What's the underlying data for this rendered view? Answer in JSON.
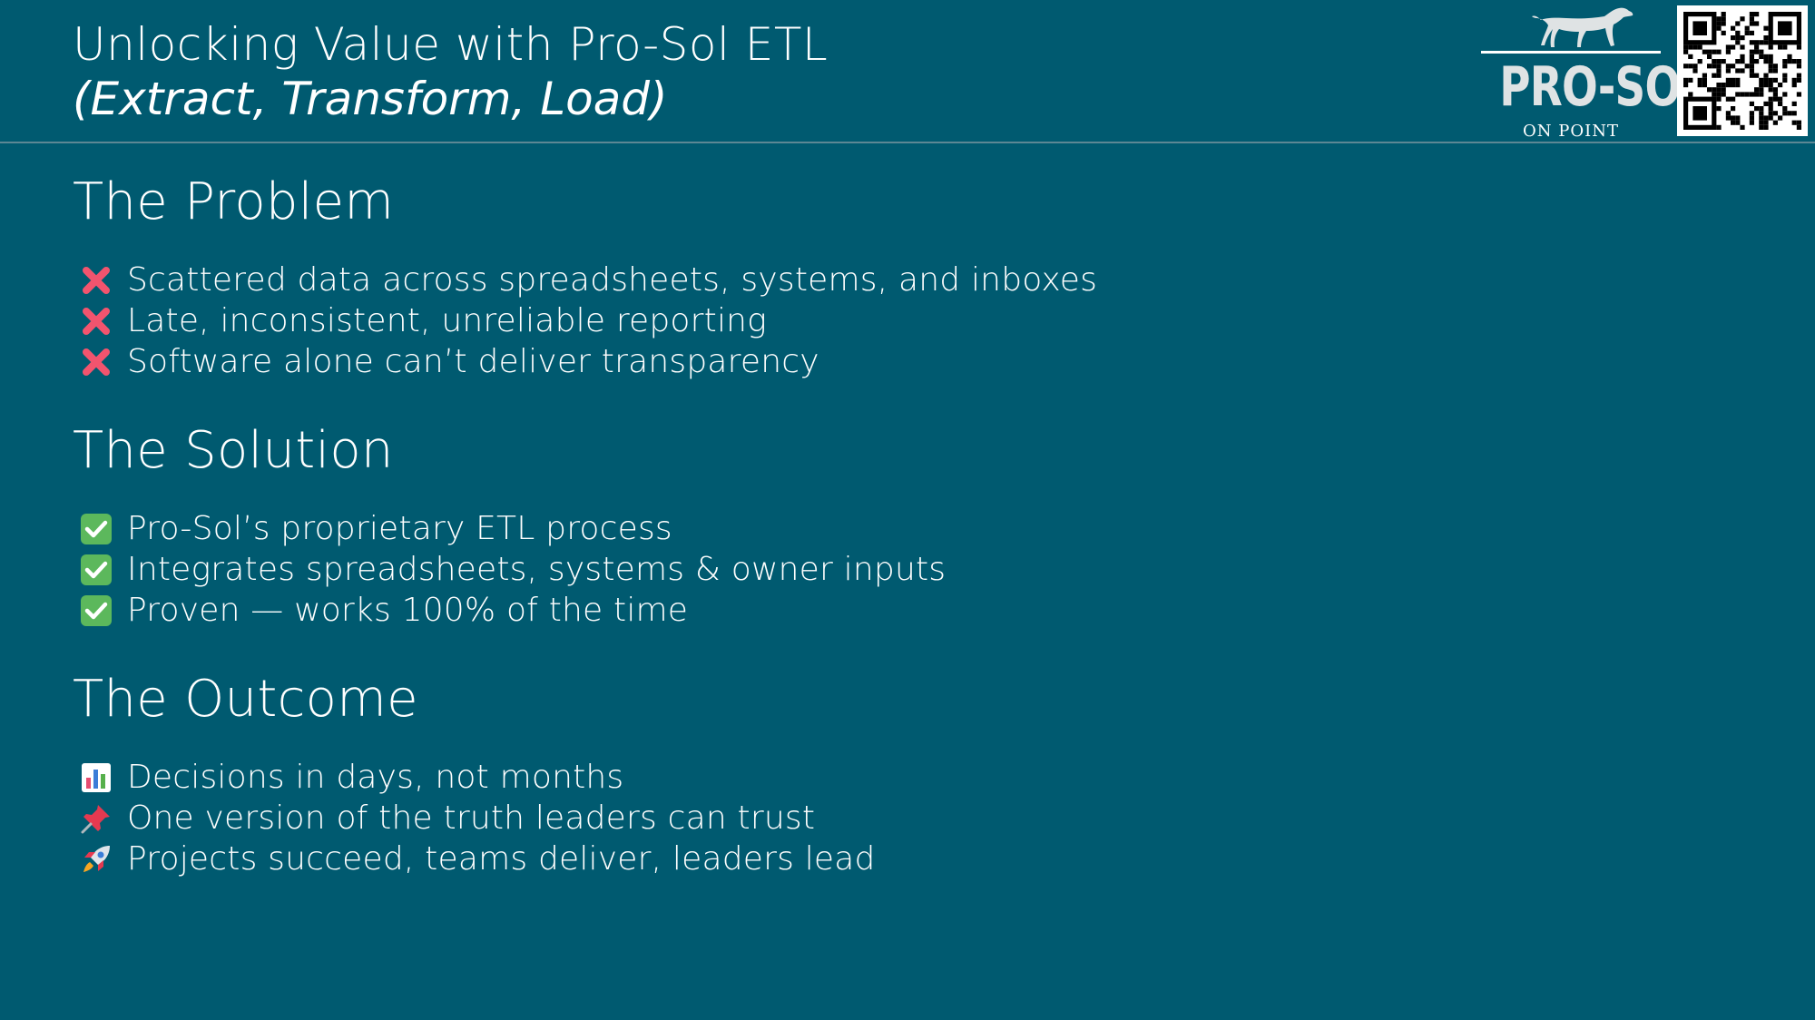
{
  "header": {
    "title_line1": "Unlocking Value with Pro-Sol ETL",
    "title_line2": "(Extract, Transform, Load)"
  },
  "logo": {
    "name": "PRO-SOL",
    "tagline": "ON POINT",
    "icon": "pointer-dog-icon"
  },
  "qr": {
    "icon": "qr-code-icon"
  },
  "sections": [
    {
      "heading": "The Problem",
      "items": [
        {
          "icon": "red-cross-icon",
          "text": "Scattered data across spreadsheets, systems, and inboxes"
        },
        {
          "icon": "red-cross-icon",
          "text": "Late, inconsistent, unreliable reporting"
        },
        {
          "icon": "red-cross-icon",
          "text": "Software alone can’t deliver transparency"
        }
      ]
    },
    {
      "heading": "The Solution",
      "items": [
        {
          "icon": "green-check-icon",
          "text": "Pro-Sol’s proprietary ETL process"
        },
        {
          "icon": "green-check-icon",
          "text": "Integrates spreadsheets, systems & owner inputs"
        },
        {
          "icon": "green-check-icon",
          "text": "Proven — works 100% of the time"
        }
      ]
    },
    {
      "heading": "The Outcome",
      "items": [
        {
          "icon": "bar-chart-icon",
          "text": "Decisions in days, not months"
        },
        {
          "icon": "pushpin-icon",
          "text": "One version of the truth leaders can trust"
        },
        {
          "icon": "rocket-icon",
          "text": "Projects succeed, teams deliver, leaders lead"
        }
      ]
    }
  ],
  "colors": {
    "background": "#005a70",
    "divider": "#5d8794",
    "cross": "#f2546e",
    "check": "#5cb85c"
  }
}
